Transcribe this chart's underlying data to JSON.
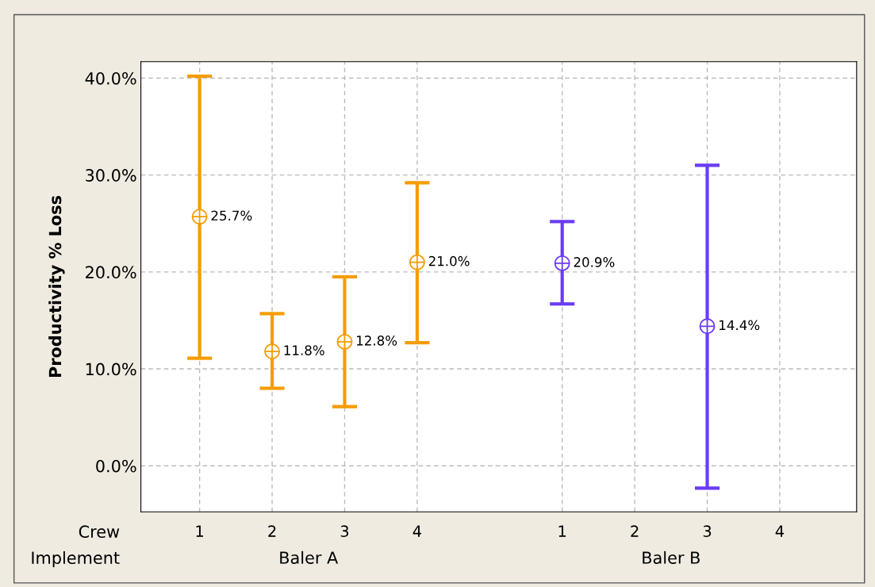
{
  "chart_data": {
    "type": "scatter",
    "ylabel": "Productivity % Loss",
    "categories": [
      "1",
      "2",
      "3",
      "4",
      null,
      "1",
      "2",
      "3",
      "4"
    ],
    "series": [
      {
        "color": "#f59c00",
        "values": [
          25.7,
          11.8,
          12.8,
          21.0,
          null,
          null,
          null,
          null,
          null
        ],
        "errors": [
          [
            11.1,
            40.2
          ],
          [
            8.0,
            15.7
          ],
          [
            6.1,
            19.5
          ],
          [
            12.7,
            29.2
          ],
          null,
          null,
          null,
          null,
          null
        ],
        "value_labels": [
          "25.7%",
          "11.8%",
          "12.8%",
          "21.0%",
          null,
          null,
          null,
          null,
          null
        ]
      },
      {
        "color": "#6a3cf5",
        "values": [
          null,
          null,
          null,
          null,
          null,
          20.9,
          null,
          14.4,
          null
        ],
        "errors": [
          null,
          null,
          null,
          null,
          null,
          [
            16.7,
            25.2
          ],
          null,
          [
            -2.3,
            31.0
          ],
          null
        ],
        "value_labels": [
          null,
          null,
          null,
          null,
          null,
          "20.9%",
          null,
          "14.4%",
          null
        ]
      }
    ],
    "ylim": [
      -4.75,
      41.7
    ],
    "yticks": [
      {
        "value": 0,
        "label": "0.0%"
      },
      {
        "value": 10,
        "label": "10.0%"
      },
      {
        "value": 20,
        "label": "20.0%"
      },
      {
        "value": 30,
        "label": "30.0%"
      },
      {
        "value": 40,
        "label": "40.0%"
      }
    ],
    "annotations": [
      "Crew",
      "Implement",
      "Baler A",
      "Baler B"
    ],
    "grid": true,
    "marker": "circle",
    "legend": false
  }
}
